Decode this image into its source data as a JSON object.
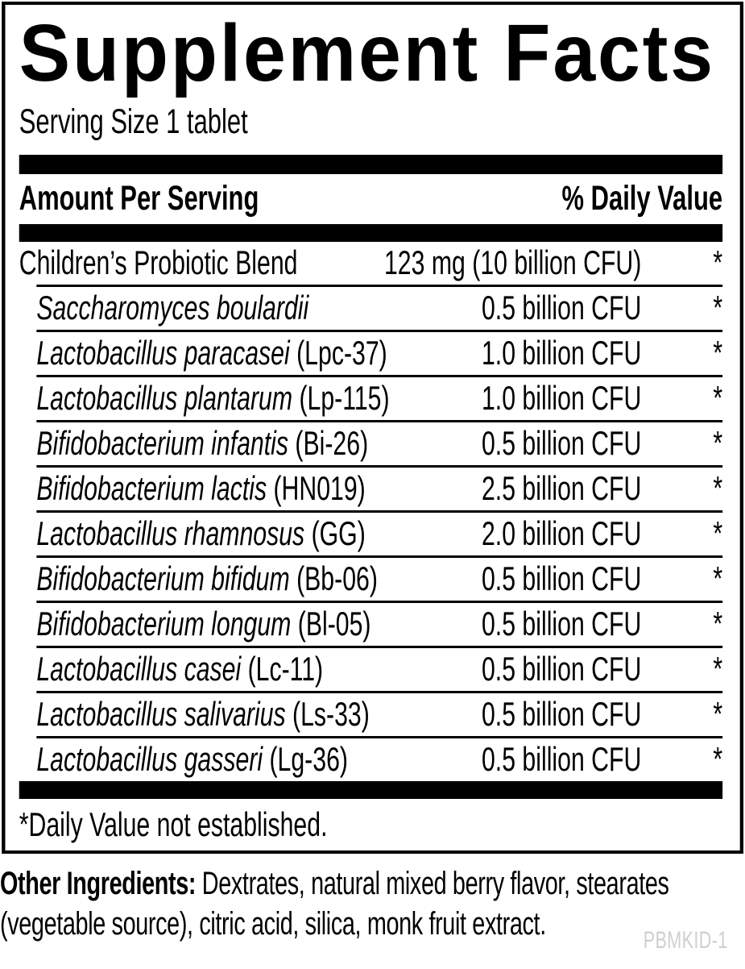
{
  "label": {
    "title": "Supplement Facts",
    "serving_size": "Serving Size 1 tablet",
    "header": {
      "amount": "Amount Per Serving",
      "daily_value": "% Daily Value"
    },
    "rows": [
      {
        "name": "Children’s Probiotic Blend",
        "strain": "",
        "amount": "123 mg (10 billion CFU)",
        "daily_value": "*",
        "indent": false,
        "italic": false
      },
      {
        "name": "Saccharomyces boulardii",
        "strain": "",
        "amount": "0.5 billion CFU",
        "daily_value": "*",
        "indent": true,
        "italic": true
      },
      {
        "name": "Lactobacillus paracasei",
        "strain": "(Lpc-37)",
        "amount": "1.0 billion CFU",
        "daily_value": "*",
        "indent": true,
        "italic": true
      },
      {
        "name": "Lactobacillus plantarum",
        "strain": "(Lp-115)",
        "amount": "1.0 billion CFU",
        "daily_value": "*",
        "indent": true,
        "italic": true
      },
      {
        "name": "Bifidobacterium infantis",
        "strain": "(Bi-26)",
        "amount": "0.5 billion CFU",
        "daily_value": "*",
        "indent": true,
        "italic": true
      },
      {
        "name": "Bifidobacterium lactis",
        "strain": "(HN019)",
        "amount": "2.5 billion CFU",
        "daily_value": "*",
        "indent": true,
        "italic": true
      },
      {
        "name": "Lactobacillus rhamnosus",
        "strain": "(GG)",
        "amount": "2.0 billion CFU",
        "daily_value": "*",
        "indent": true,
        "italic": true
      },
      {
        "name": "Bifidobacterium bifidum",
        "strain": "(Bb-06)",
        "amount": "0.5 billion CFU",
        "daily_value": "*",
        "indent": true,
        "italic": true
      },
      {
        "name": "Bifidobacterium longum",
        "strain": "(Bl-05)",
        "amount": "0.5 billion CFU",
        "daily_value": "*",
        "indent": true,
        "italic": true
      },
      {
        "name": "Lactobacillus casei",
        "strain": "(Lc-11)",
        "amount": "0.5 billion CFU",
        "daily_value": "*",
        "indent": true,
        "italic": true
      },
      {
        "name": "Lactobacillus salivarius",
        "strain": "(Ls-33)",
        "amount": "0.5 billion CFU",
        "daily_value": "*",
        "indent": true,
        "italic": true
      },
      {
        "name": "Lactobacillus gasseri",
        "strain": "(Lg-36)",
        "amount": "0.5 billion CFU",
        "daily_value": "*",
        "indent": true,
        "italic": true
      }
    ],
    "footnote": "*Daily Value not established.",
    "other_ingredients": {
      "label": "Other Ingredients:",
      "line1": "Dextrates, natural mixed berry flavor, stearates",
      "line2": "(vegetable source), citric acid, silica, monk fruit extract."
    },
    "code": "PBMKID-1",
    "colors": {
      "text": "#000000",
      "background": "#ffffff",
      "code_gray": "#cfcfcf"
    }
  }
}
